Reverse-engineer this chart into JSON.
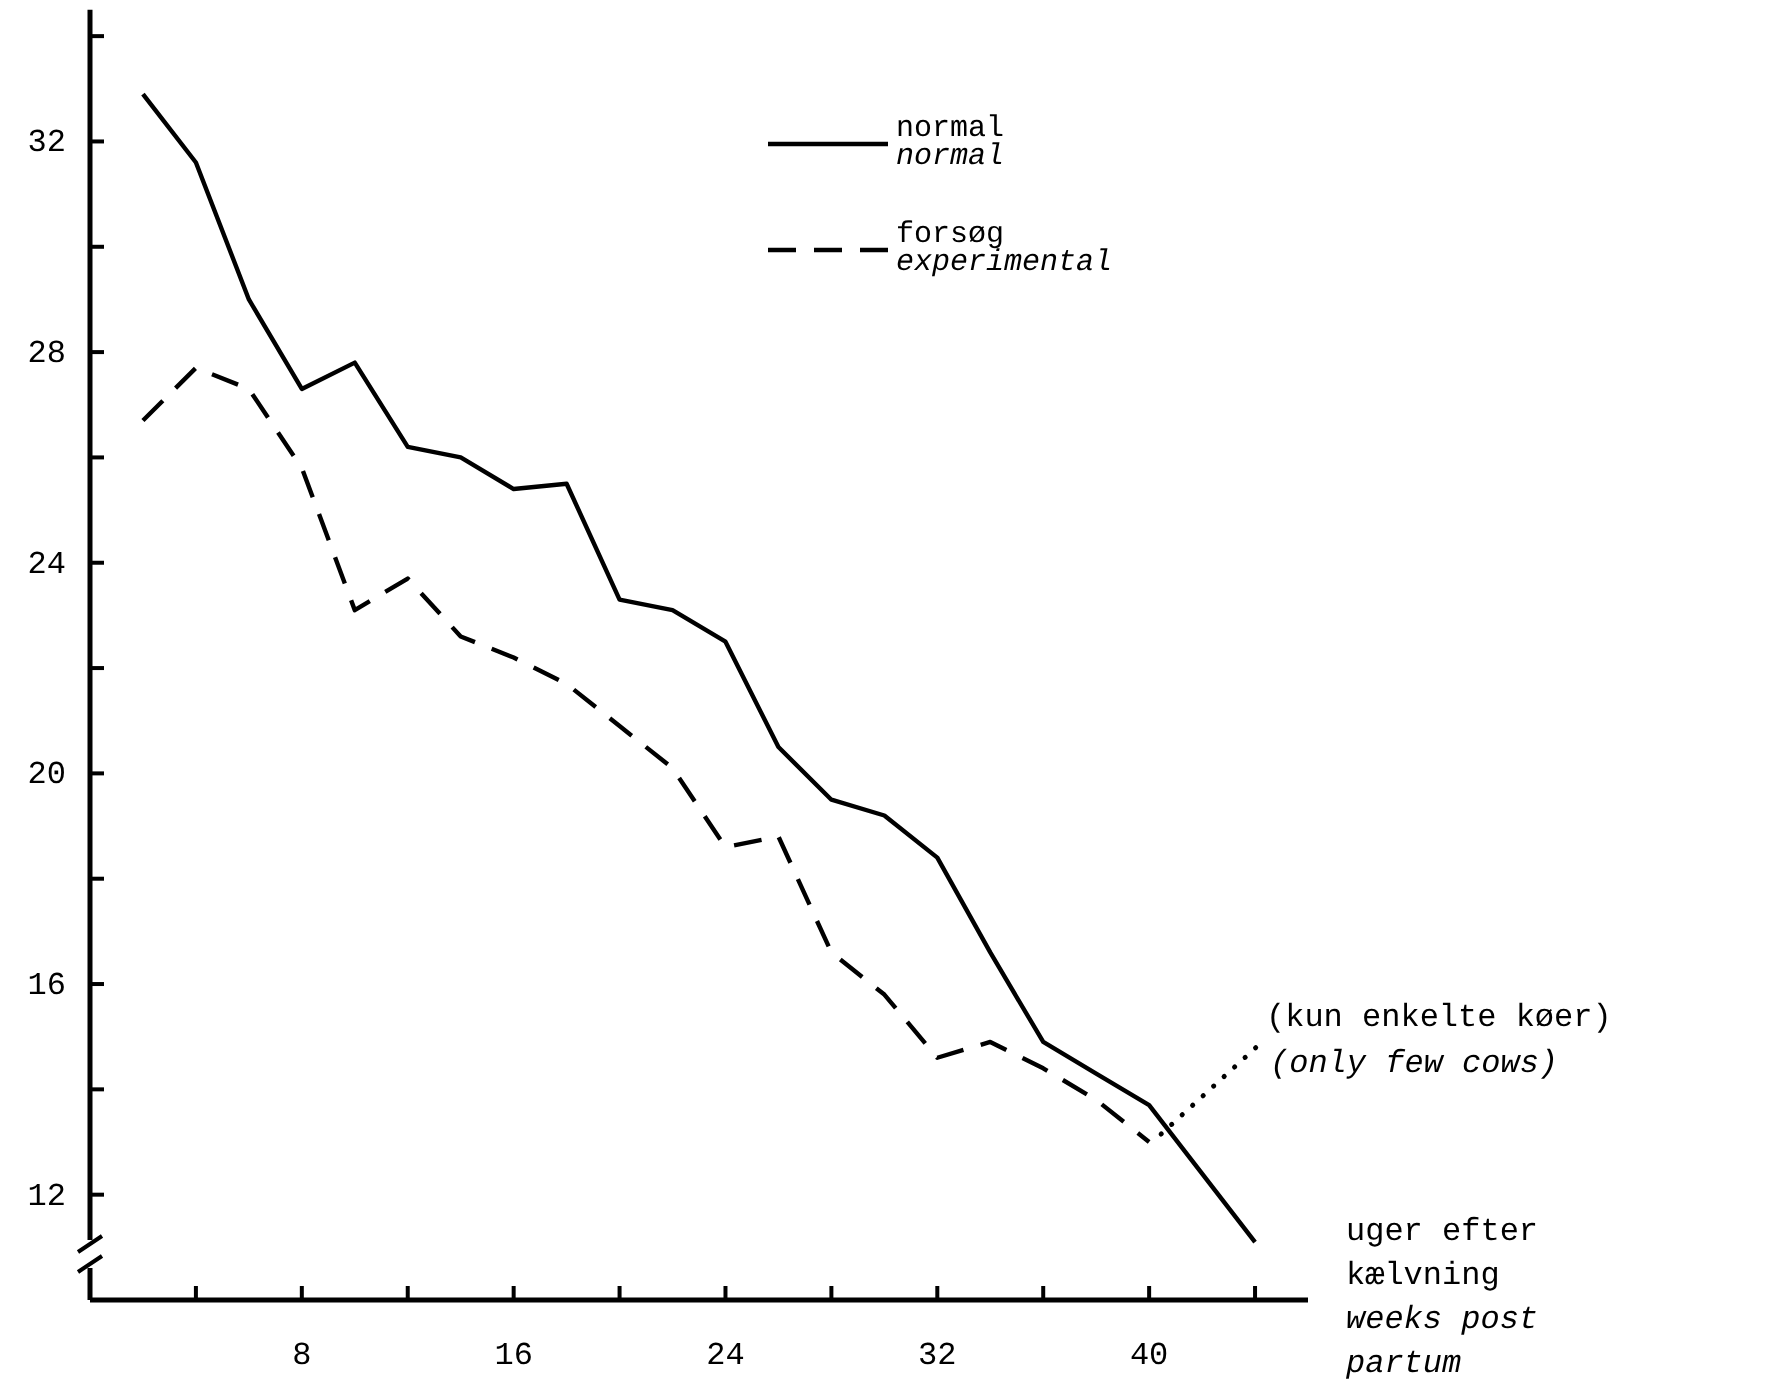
{
  "chart_data": {
    "type": "line",
    "xlabel": "uger efter\nkælvning\nweeks post\npartum",
    "x": [
      2,
      4,
      6,
      8,
      10,
      12,
      14,
      16,
      18,
      20,
      22,
      24,
      26,
      28,
      30,
      32,
      34,
      36,
      38,
      40,
      42,
      44
    ],
    "series": [
      {
        "name": "normal\nnormal",
        "color": "#000000",
        "line_style": "solid",
        "values": [
          32.9,
          31.6,
          29.0,
          27.3,
          27.8,
          26.2,
          26.0,
          25.4,
          25.5,
          23.3,
          23.1,
          22.5,
          20.5,
          19.5,
          19.2,
          18.4,
          16.6,
          14.9,
          14.3,
          13.7,
          12.4,
          11.1
        ]
      },
      {
        "name": "forsøg\nexperimental",
        "color": "#000000",
        "line_style": "dashed",
        "values": [
          26.7,
          27.7,
          27.3,
          25.8,
          23.1,
          23.7,
          22.6,
          22.2,
          21.7,
          20.9,
          20.1,
          18.6,
          18.8,
          16.6,
          15.8,
          14.6,
          14.9,
          14.4,
          13.8,
          13.0,
          null,
          null
        ]
      }
    ],
    "annotations": [
      {
        "text": "(kun enkelte køer)\n(only few cows)",
        "x": 40,
        "y": 13.0
      }
    ],
    "xlim": [
      0,
      46
    ],
    "xticks": [
      {
        "value": 4,
        "label": null
      },
      8,
      {
        "value": 12,
        "label": null
      },
      16,
      {
        "value": 20,
        "label": null
      },
      24,
      {
        "value": 28,
        "label": null
      },
      32,
      {
        "value": 36,
        "label": null
      },
      40,
      {
        "value": 44,
        "label": null
      }
    ],
    "ylim": [
      10,
      34.5
    ],
    "yticks": [
      12,
      {
        "value": 14,
        "label": null
      },
      16,
      {
        "value": 18,
        "label": null
      },
      20,
      {
        "value": 22,
        "label": null
      },
      24,
      {
        "value": 26,
        "label": null
      },
      28,
      {
        "value": 30,
        "label": null
      },
      32,
      {
        "value": 34,
        "label": null
      }
    ],
    "legend": "top",
    "grid": false,
    "marker": "none"
  }
}
